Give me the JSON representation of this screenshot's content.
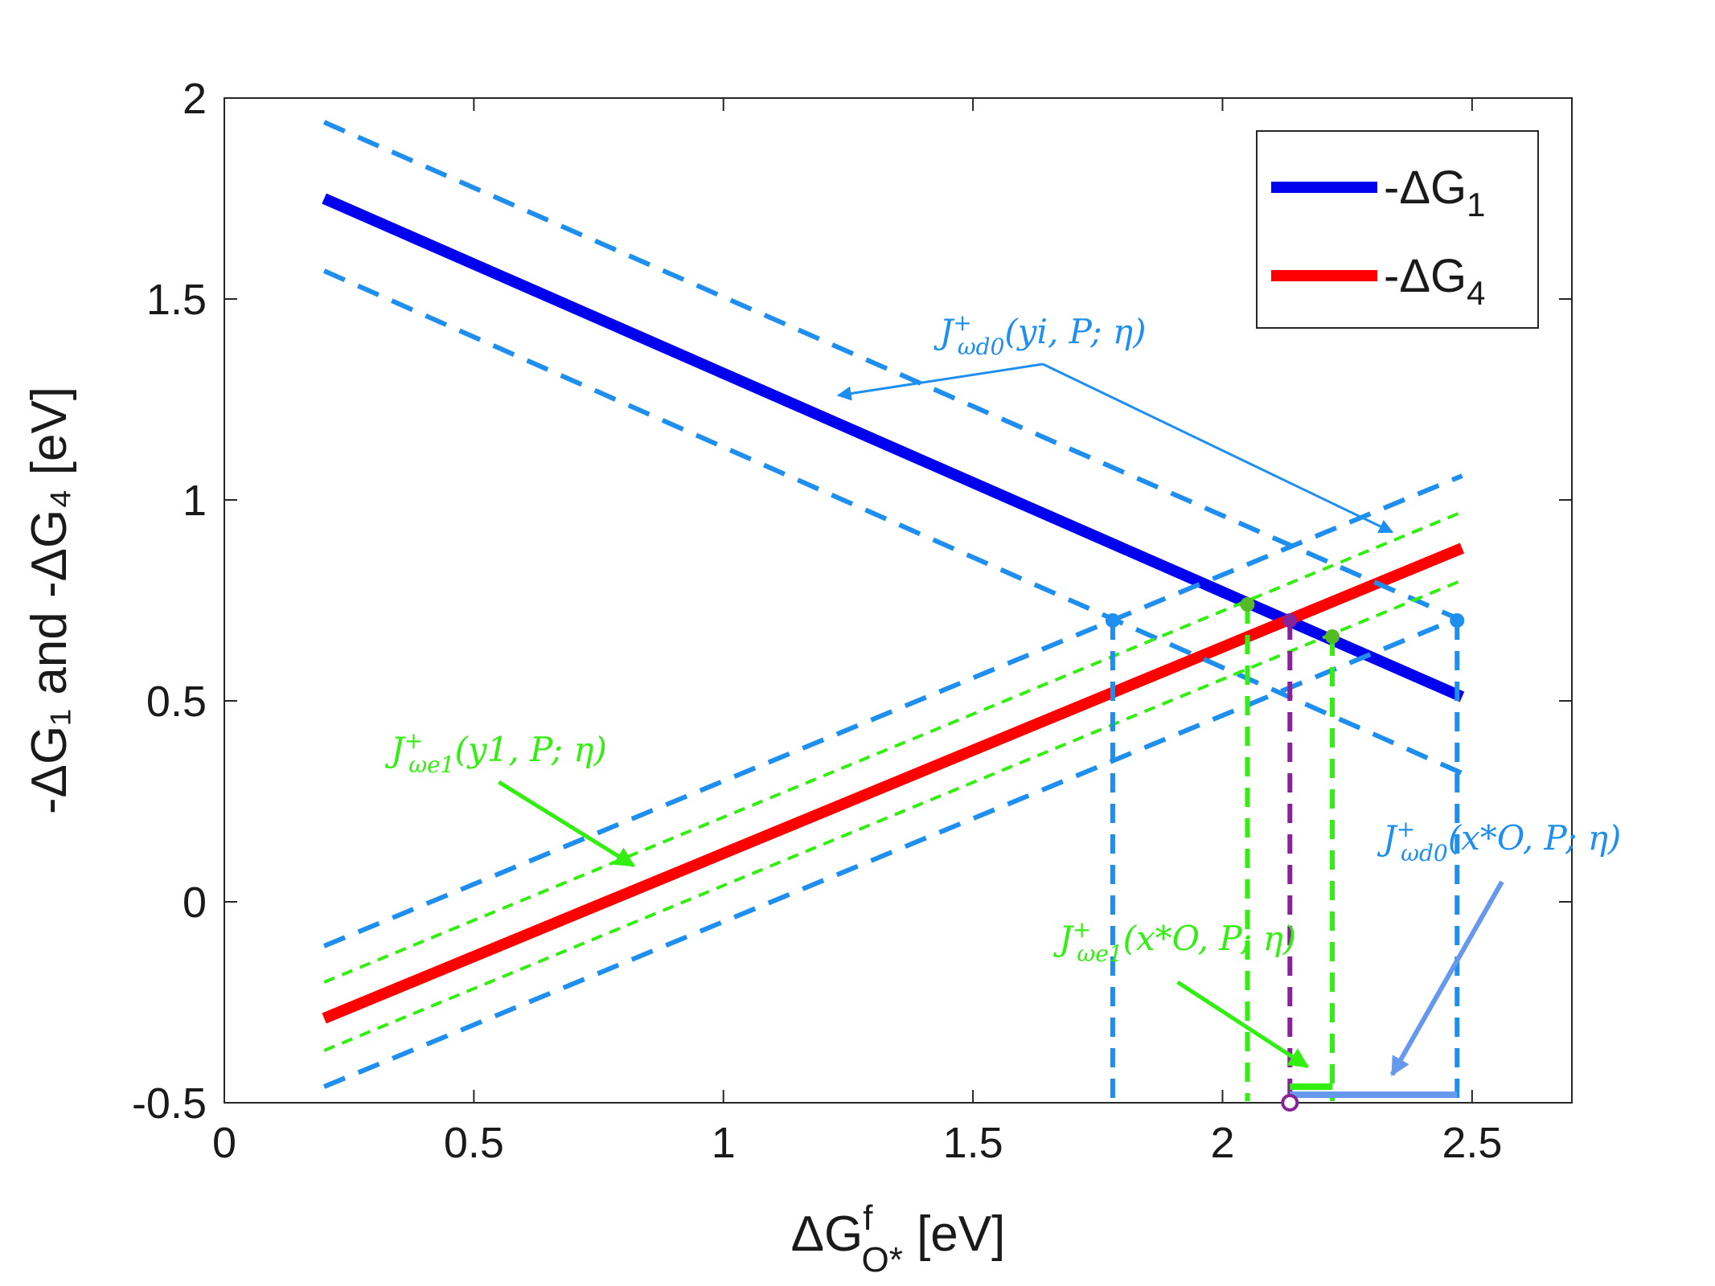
{
  "chart_data": {
    "type": "line",
    "xlabel": "ΔG",
    "xlabel_sup": "f",
    "xlabel_sub": "O*",
    "xlabel_unit": "[eV]",
    "ylabel": "-ΔG₁ and -ΔG₄ [eV]",
    "xlim": [
      0,
      2.7
    ],
    "ylim": [
      -0.5,
      2
    ],
    "xticks": [
      0,
      0.5,
      1,
      1.5,
      2,
      2.5
    ],
    "xtick_labels": [
      "0",
      "0.5",
      "1",
      "1.5",
      "2",
      "2.5"
    ],
    "yticks": [
      -0.5,
      0,
      0.5,
      1,
      1.5,
      2
    ],
    "ytick_labels": [
      "-0.5",
      "0",
      "0.5",
      "1",
      "1.5",
      "2"
    ],
    "legend_position": "top-right",
    "series": [
      {
        "name": "-ΔG1",
        "legend": "-ΔG",
        "legend_sub": "1",
        "color": "#0000ee",
        "style": "solid-thick",
        "x": [
          0.2,
          2.48
        ],
        "y": [
          1.75,
          0.51
        ]
      },
      {
        "name": "-ΔG4",
        "legend": "-ΔG",
        "legend_sub": "4",
        "color": "#ff0000",
        "style": "solid-thick",
        "x": [
          0.2,
          2.48
        ],
        "y": [
          -0.29,
          0.88
        ]
      },
      {
        "name": "-ΔG1 upper bound",
        "color": "#1f8fef",
        "style": "dashed",
        "x": [
          0.2,
          2.48
        ],
        "y": [
          1.94,
          0.7
        ]
      },
      {
        "name": "-ΔG1 lower bound",
        "color": "#1f8fef",
        "style": "dashed",
        "x": [
          0.2,
          2.48
        ],
        "y": [
          1.57,
          0.32
        ]
      },
      {
        "name": "-ΔG4 upper bound (wd0)",
        "color": "#1f8fef",
        "style": "dashed",
        "x": [
          0.2,
          2.48
        ],
        "y": [
          -0.11,
          1.06
        ]
      },
      {
        "name": "-ΔG4 lower bound (wd0)",
        "color": "#1f8fef",
        "style": "dashed",
        "x": [
          0.2,
          2.48
        ],
        "y": [
          -0.46,
          0.71
        ]
      },
      {
        "name": "-ΔG4 upper bound (we1)",
        "color": "#33ee11",
        "style": "dotted",
        "x": [
          0.2,
          2.48
        ],
        "y": [
          -0.2,
          0.97
        ]
      },
      {
        "name": "-ΔG4 lower bound (we1)",
        "color": "#33ee11",
        "style": "dotted",
        "x": [
          0.2,
          2.48
        ],
        "y": [
          -0.37,
          0.8
        ]
      }
    ],
    "drop_lines": [
      {
        "x": 1.78,
        "y_top": 0.7,
        "color": "#1f8fef"
      },
      {
        "x": 2.47,
        "y_top": 0.7,
        "color": "#1f8fef"
      },
      {
        "x": 2.05,
        "y_top": 0.74,
        "color": "#33ee11"
      },
      {
        "x": 2.22,
        "y_top": 0.66,
        "color": "#33ee11"
      },
      {
        "x": 2.135,
        "y_top": 0.7,
        "color": "#882299"
      }
    ],
    "markers": [
      {
        "x": 1.78,
        "y": 0.7,
        "color": "#1f8fef",
        "filled": true
      },
      {
        "x": 2.47,
        "y": 0.7,
        "color": "#1f8fef",
        "filled": true
      },
      {
        "x": 2.05,
        "y": 0.74,
        "color": "#55bb22",
        "filled": true
      },
      {
        "x": 2.22,
        "y": 0.66,
        "color": "#55bb22",
        "filled": true
      },
      {
        "x": 2.135,
        "y": 0.7,
        "color": "#882299",
        "filled": true
      },
      {
        "x": 2.135,
        "y": -0.5,
        "color": "#882299",
        "filled": false
      }
    ],
    "intervals": [
      {
        "x0": 2.135,
        "x1": 2.22,
        "y": -0.46,
        "color": "#33ee11"
      },
      {
        "x0": 2.135,
        "x1": 2.47,
        "y": -0.48,
        "color": "#6699ee"
      }
    ],
    "annotations": [
      {
        "id": "wd0-yi",
        "main": "J",
        "sup": "+",
        "sub": "ωd0",
        "args": "(yi, P; η)",
        "color": "#1f8fef",
        "anchor": [
          1.64,
          1.39
        ],
        "arrow_to": [
          [
            1.23,
            1.26
          ],
          [
            2.34,
            0.92
          ]
        ]
      },
      {
        "id": "we1-y1",
        "main": "J",
        "sup": "+",
        "sub": "ωe1",
        "args": "(y1, P; η)",
        "color": "#33ee11",
        "anchor": [
          0.55,
          0.35
        ],
        "arrow_to": [
          [
            0.82,
            0.09
          ]
        ]
      },
      {
        "id": "wd0-xo",
        "main": "J",
        "sup": "+",
        "sub": "ωd0",
        "args": "(x*O, P; η)",
        "color": "#1f8fef",
        "anchor": [
          2.56,
          0.13
        ],
        "arrow_to": [
          [
            2.34,
            -0.43
          ]
        ]
      },
      {
        "id": "we1-xo",
        "main": "J",
        "sup": "+",
        "sub": "ωe1",
        "args": "(x*O, P; η)",
        "color": "#33ee11",
        "anchor": [
          1.91,
          -0.12
        ],
        "arrow_to": [
          [
            2.17,
            -0.41
          ]
        ]
      }
    ]
  }
}
